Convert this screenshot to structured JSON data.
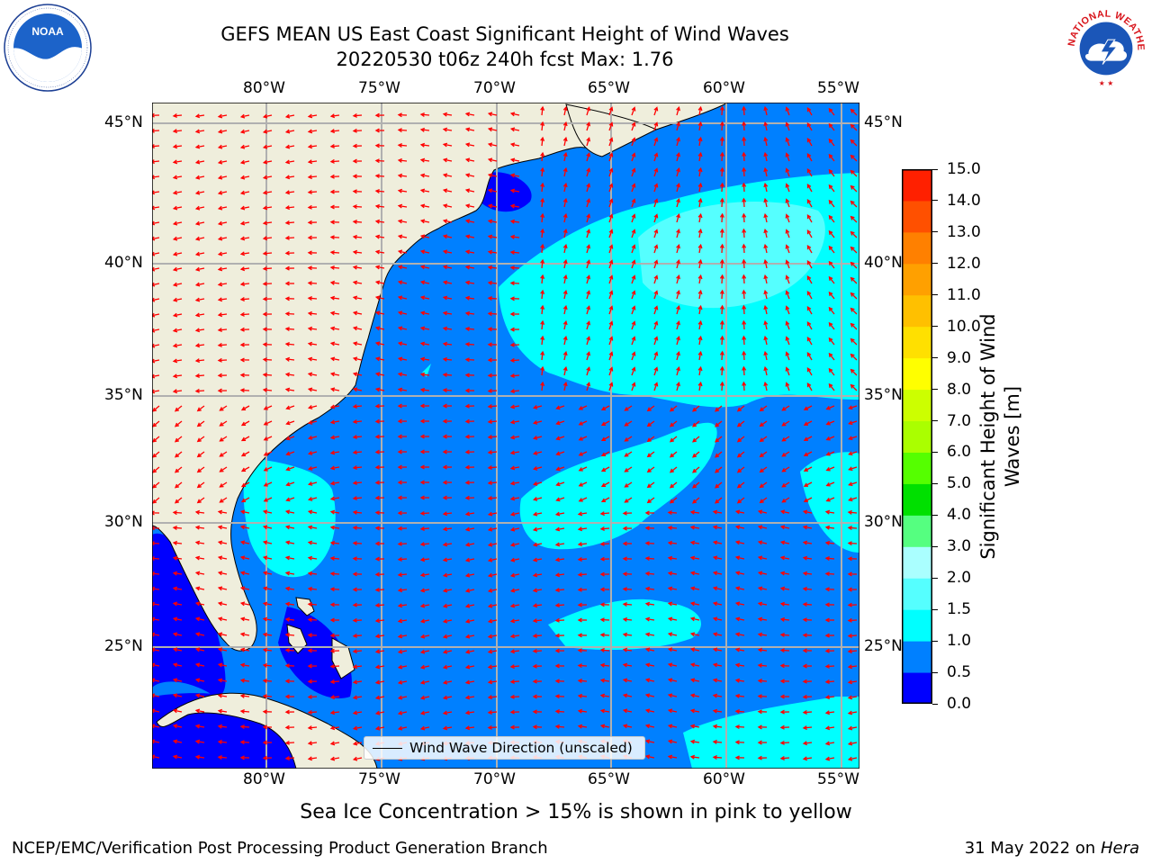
{
  "title": {
    "line1": "GEFS MEAN US East Coast Significant Height of Wind Waves",
    "line2": "20220530 t06z 240h fcst   Max: 1.76"
  },
  "logos": {
    "noaa": {
      "text": "NOAA",
      "ring_text": "NATIONAL OCEANIC AND ATMOSPHERIC ADMINISTRATION · U.S. DEPARTMENT OF COMMERCE"
    },
    "nws": {
      "ring_text": "NATIONAL WEATHER SERVICE"
    }
  },
  "map": {
    "lon_ticks": [
      "80°W",
      "75°W",
      "70°W",
      "65°W",
      "60°W",
      "55°W"
    ],
    "lat_ticks": [
      "45°N",
      "40°N",
      "35°N",
      "30°N",
      "25°N"
    ],
    "colors": {
      "land": "#efeedc",
      "ocean_low": "#0000fe",
      "ocean_mid": "#0080ff",
      "ocean_high": "#00ffff",
      "ocean_top": "#55ffff",
      "gridline": "#b0b0b0",
      "arrow": "#ff0000"
    },
    "legend": "Wind Wave Direction (unscaled)"
  },
  "colorbar": {
    "label_line1": "Significant Height of Wind",
    "label_line2": "Waves [m]",
    "ticks": [
      "0.0",
      "0.5",
      "1.0",
      "1.5",
      "2.0",
      "3.0",
      "4.0",
      "5.0",
      "6.0",
      "7.0",
      "8.0",
      "9.0",
      "10.0",
      "11.0",
      "12.0",
      "13.0",
      "14.0",
      "15.0"
    ],
    "colors": [
      "#0000fe",
      "#0080ff",
      "#00ffff",
      "#55ffff",
      "#aaffff",
      "#55ff80",
      "#00e000",
      "#55ff00",
      "#aaff00",
      "#ccff00",
      "#ffff00",
      "#ffe000",
      "#ffc000",
      "#ffa000",
      "#ff8000",
      "#ff5000",
      "#ff2000"
    ]
  },
  "footer": {
    "note": "Sea Ice Concentration > 15% is shown in pink to yellow",
    "left": "NCEP/EMC/Verification Post Processing Product Generation Branch",
    "right_date": "31 May 2022 on",
    "right_host": "Hera"
  }
}
